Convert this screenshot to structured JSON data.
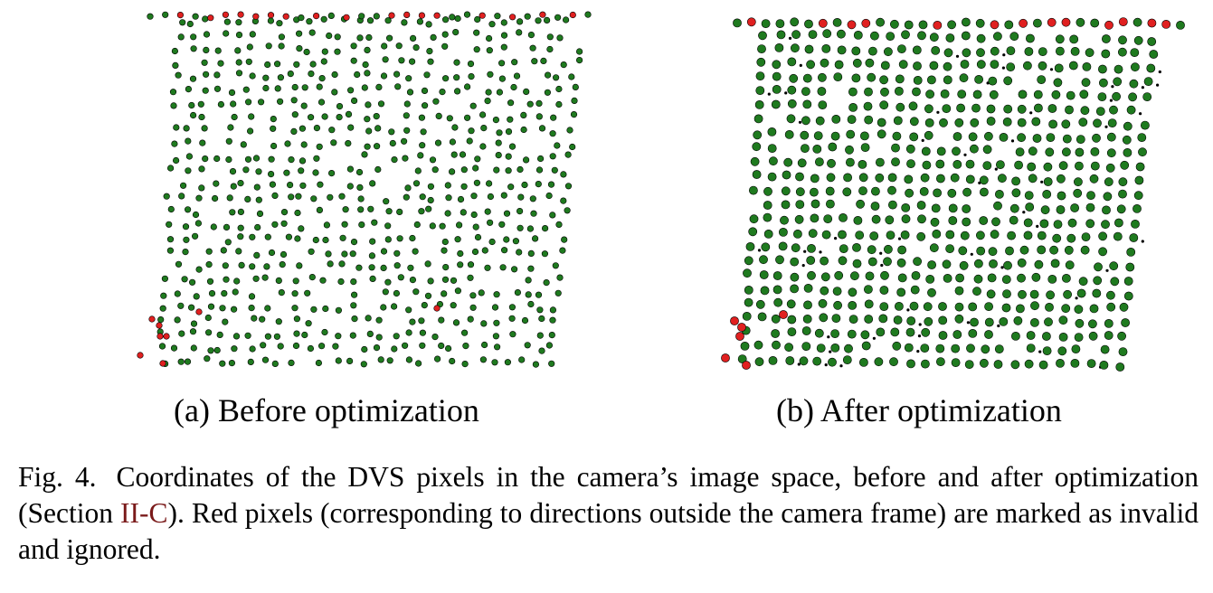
{
  "figure": {
    "subfigures": [
      {
        "id": "a",
        "caption": "(a) Before optimization"
      },
      {
        "id": "b",
        "caption": "(b) After optimization"
      }
    ],
    "caption": {
      "label": "Fig. 4.",
      "text_before_ref": "Coordinates of the DVS pixels in the camera’s image space, before and after optimization (Section ",
      "ref": "II-C",
      "text_after_ref": "). Red pixels (corresponding to directions outside the camera frame) are marked as invalid and ignored."
    }
  },
  "colors": {
    "valid": "#1f7a1f",
    "invalid": "#e02020",
    "outline": "#000000",
    "ref": "#7a1a1a"
  }
}
